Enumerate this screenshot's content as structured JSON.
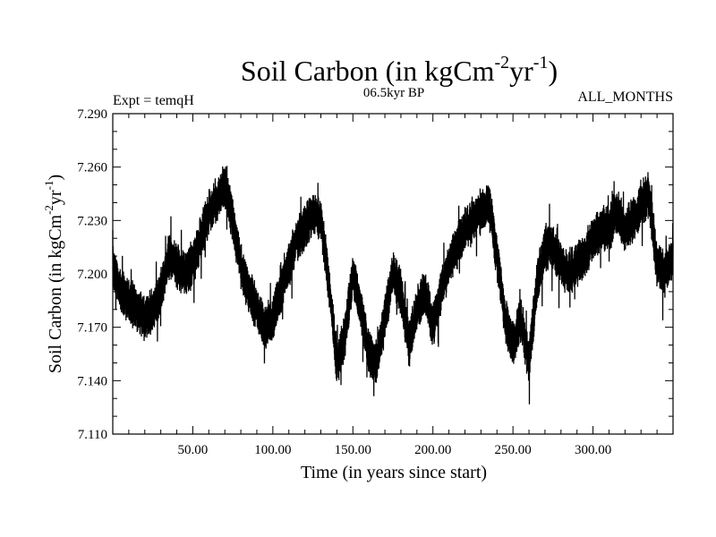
{
  "chart_data": {
    "type": "line",
    "title": {
      "main": "Soil Carbon (in kgCm",
      "sup1": "-2",
      "mid": "yr",
      "sup2": "-1",
      "end": ")"
    },
    "subtitle_left": "Expt = temqH",
    "subtitle_center": "06.5kyr BP",
    "subtitle_right": "ALL_MONTHS",
    "xlabel": "Time (in years since start)",
    "ylabel": {
      "main": "Soil Carbon (in kgCm",
      "sup1": "-2",
      "mid": "yr",
      "sup2": "-1",
      "end": ")"
    },
    "xlim": [
      0,
      350
    ],
    "ylim": [
      7.11,
      7.29
    ],
    "x_ticks": [
      50,
      100,
      150,
      200,
      250,
      300
    ],
    "x_tick_labels": [
      "50.00",
      "100.00",
      "150.00",
      "200.00",
      "250.00",
      "300.00"
    ],
    "y_ticks": [
      7.11,
      7.14,
      7.17,
      7.2,
      7.23,
      7.26,
      7.29
    ],
    "y_tick_labels": [
      "7.110",
      "7.140",
      "7.170",
      "7.200",
      "7.230",
      "7.260",
      "7.290"
    ],
    "x_minor_step": 10,
    "y_minor_step": 0.01,
    "series": [
      {
        "name": "Soil Carbon",
        "x": [
          0,
          5,
          10,
          15,
          20,
          25,
          30,
          35,
          40,
          45,
          50,
          55,
          60,
          65,
          70,
          75,
          80,
          85,
          90,
          95,
          100,
          105,
          110,
          115,
          120,
          125,
          130,
          135,
          140,
          145,
          150,
          155,
          160,
          165,
          170,
          175,
          180,
          185,
          190,
          195,
          200,
          205,
          210,
          215,
          220,
          225,
          230,
          235,
          240,
          245,
          250,
          255,
          260,
          265,
          270,
          275,
          280,
          285,
          290,
          295,
          300,
          305,
          310,
          315,
          320,
          325,
          330,
          335,
          340,
          345,
          350
        ],
        "y": [
          7.205,
          7.19,
          7.185,
          7.18,
          7.175,
          7.18,
          7.19,
          7.21,
          7.205,
          7.2,
          7.205,
          7.22,
          7.235,
          7.24,
          7.25,
          7.23,
          7.205,
          7.19,
          7.18,
          7.17,
          7.175,
          7.19,
          7.205,
          7.22,
          7.225,
          7.235,
          7.23,
          7.195,
          7.15,
          7.165,
          7.2,
          7.18,
          7.155,
          7.15,
          7.175,
          7.2,
          7.19,
          7.16,
          7.18,
          7.19,
          7.17,
          7.19,
          7.205,
          7.215,
          7.225,
          7.23,
          7.235,
          7.24,
          7.21,
          7.175,
          7.16,
          7.175,
          7.15,
          7.195,
          7.215,
          7.215,
          7.205,
          7.2,
          7.205,
          7.21,
          7.22,
          7.225,
          7.225,
          7.235,
          7.225,
          7.23,
          7.24,
          7.245,
          7.205,
          7.2,
          7.21
        ],
        "noise_amplitude": 0.016
      }
    ]
  }
}
